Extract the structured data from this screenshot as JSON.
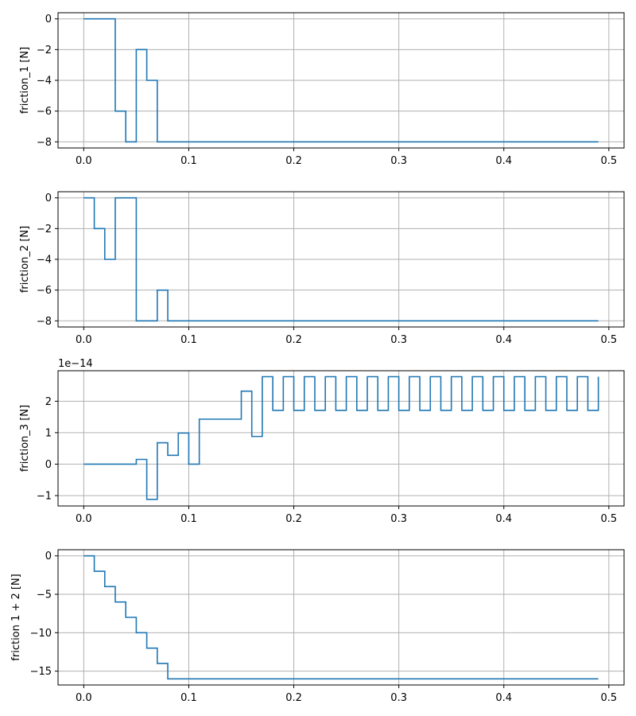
{
  "chart_data": [
    {
      "type": "line",
      "step": "post",
      "ylabel": "friction_1 [N]",
      "xlim": [
        -0.0245,
        0.5145
      ],
      "ylim": [
        -8.4,
        0.4
      ],
      "xticks": [
        0.0,
        0.1,
        0.2,
        0.3,
        0.4,
        0.5
      ],
      "xtick_labels": [
        "0.0",
        "0.1",
        "0.2",
        "0.3",
        "0.4",
        "0.5"
      ],
      "yticks": [
        0,
        -2,
        -4,
        -6,
        -8
      ],
      "ytick_labels": [
        "0",
        "−2",
        "−4",
        "−6",
        "−8"
      ],
      "offset_label": "",
      "grid": true,
      "x": [
        0.0,
        0.03,
        0.04,
        0.05,
        0.06,
        0.07,
        0.49
      ],
      "y": [
        0,
        -6,
        -8,
        -2,
        -4,
        -8,
        -8
      ]
    },
    {
      "type": "line",
      "step": "post",
      "ylabel": "friction_2 [N]",
      "xlim": [
        -0.0245,
        0.5145
      ],
      "ylim": [
        -8.4,
        0.4
      ],
      "xticks": [
        0.0,
        0.1,
        0.2,
        0.3,
        0.4,
        0.5
      ],
      "xtick_labels": [
        "0.0",
        "0.1",
        "0.2",
        "0.3",
        "0.4",
        "0.5"
      ],
      "yticks": [
        0,
        -2,
        -4,
        -6,
        -8
      ],
      "ytick_labels": [
        "0",
        "−2",
        "−4",
        "−6",
        "−8"
      ],
      "offset_label": "",
      "grid": true,
      "x": [
        0.0,
        0.01,
        0.02,
        0.03,
        0.05,
        0.07,
        0.08,
        0.49
      ],
      "y": [
        0,
        -2,
        -4,
        0,
        -8,
        -6,
        -8,
        -8
      ]
    },
    {
      "type": "line",
      "step": "post",
      "ylabel": "friction_3 [N]",
      "xlim": [
        -0.0245,
        0.5145
      ],
      "ylim": [
        -1.33,
        2.97
      ],
      "xticks": [
        0.0,
        0.1,
        0.2,
        0.3,
        0.4,
        0.5
      ],
      "xtick_labels": [
        "0.0",
        "0.1",
        "0.2",
        "0.3",
        "0.4",
        "0.5"
      ],
      "yticks": [
        2,
        1,
        0,
        -1
      ],
      "ytick_labels": [
        "2",
        "1",
        "0",
        "−1"
      ],
      "offset_label": "1e−14",
      "grid": true,
      "x": [
        0.0,
        0.05,
        0.06,
        0.07,
        0.08,
        0.09,
        0.1,
        0.11,
        0.15,
        0.16,
        0.17,
        0.18,
        0.19,
        0.2,
        0.21,
        0.22,
        0.23,
        0.24,
        0.25,
        0.26,
        0.27,
        0.28,
        0.29,
        0.3,
        0.31,
        0.32,
        0.33,
        0.34,
        0.35,
        0.36,
        0.37,
        0.38,
        0.39,
        0.4,
        0.41,
        0.42,
        0.43,
        0.44,
        0.45,
        0.46,
        0.47,
        0.48,
        0.49
      ],
      "y": [
        0,
        0.15,
        -1.12,
        0.68,
        0.28,
        0.99,
        0,
        1.43,
        2.32,
        0.88,
        2.78,
        1.71,
        2.78,
        1.71,
        2.78,
        1.71,
        2.78,
        1.71,
        2.78,
        1.71,
        2.78,
        1.71,
        2.78,
        1.71,
        2.78,
        1.71,
        2.78,
        1.71,
        2.78,
        1.71,
        2.78,
        1.71,
        2.78,
        1.71,
        2.78,
        1.71,
        2.78,
        1.71,
        2.78,
        1.71,
        2.78,
        1.71,
        2.78
      ]
    },
    {
      "type": "line",
      "step": "post",
      "ylabel": "friction 1 + 2 [N]",
      "xlim": [
        -0.0245,
        0.5145
      ],
      "ylim": [
        -16.8,
        0.8
      ],
      "xticks": [
        0.0,
        0.1,
        0.2,
        0.3,
        0.4,
        0.5
      ],
      "xtick_labels": [
        "0.0",
        "0.1",
        "0.2",
        "0.3",
        "0.4",
        "0.5"
      ],
      "yticks": [
        0,
        -5,
        -10,
        -15
      ],
      "ytick_labels": [
        "0",
        "−5",
        "−10",
        "−15"
      ],
      "offset_label": "",
      "grid": true,
      "x": [
        0.0,
        0.01,
        0.02,
        0.03,
        0.04,
        0.05,
        0.06,
        0.07,
        0.08,
        0.49
      ],
      "y": [
        0,
        -2,
        -4,
        -6,
        -8,
        -10,
        -12,
        -14,
        -16,
        -16
      ]
    }
  ]
}
